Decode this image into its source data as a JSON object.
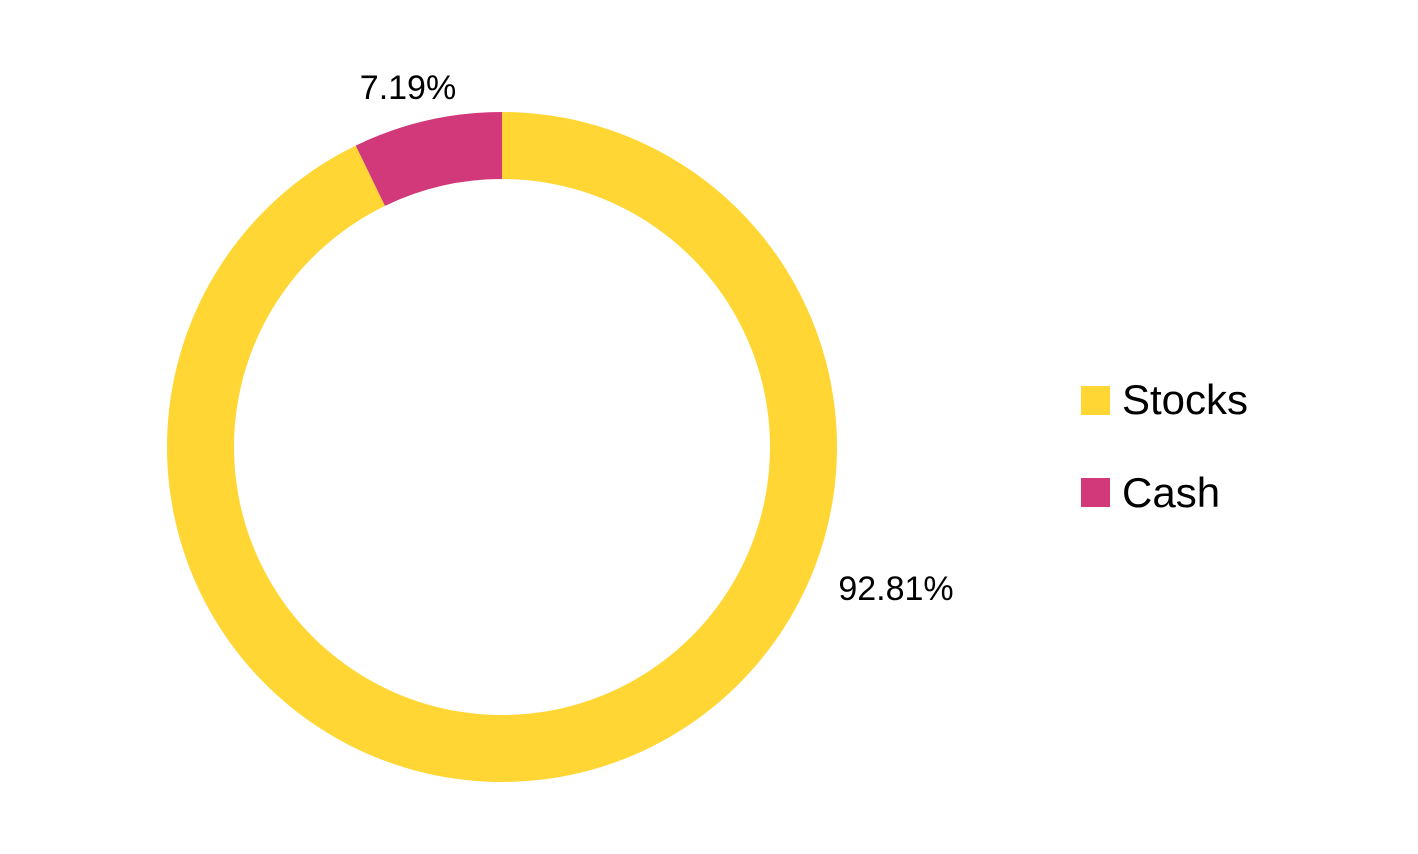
{
  "chart_data": {
    "type": "pie",
    "donut": true,
    "categories": [
      "Stocks",
      "Cash"
    ],
    "values": [
      92.81,
      7.19
    ],
    "data_labels": [
      "92.81%",
      "7.19%"
    ],
    "colors": [
      "#FFD633",
      "#D1397A"
    ],
    "legend": {
      "position": "right",
      "items": [
        {
          "label": "Stocks",
          "color": "#FFD633"
        },
        {
          "label": "Cash",
          "color": "#D1397A"
        }
      ]
    },
    "start_angle": "top",
    "direction": "clockwise"
  }
}
